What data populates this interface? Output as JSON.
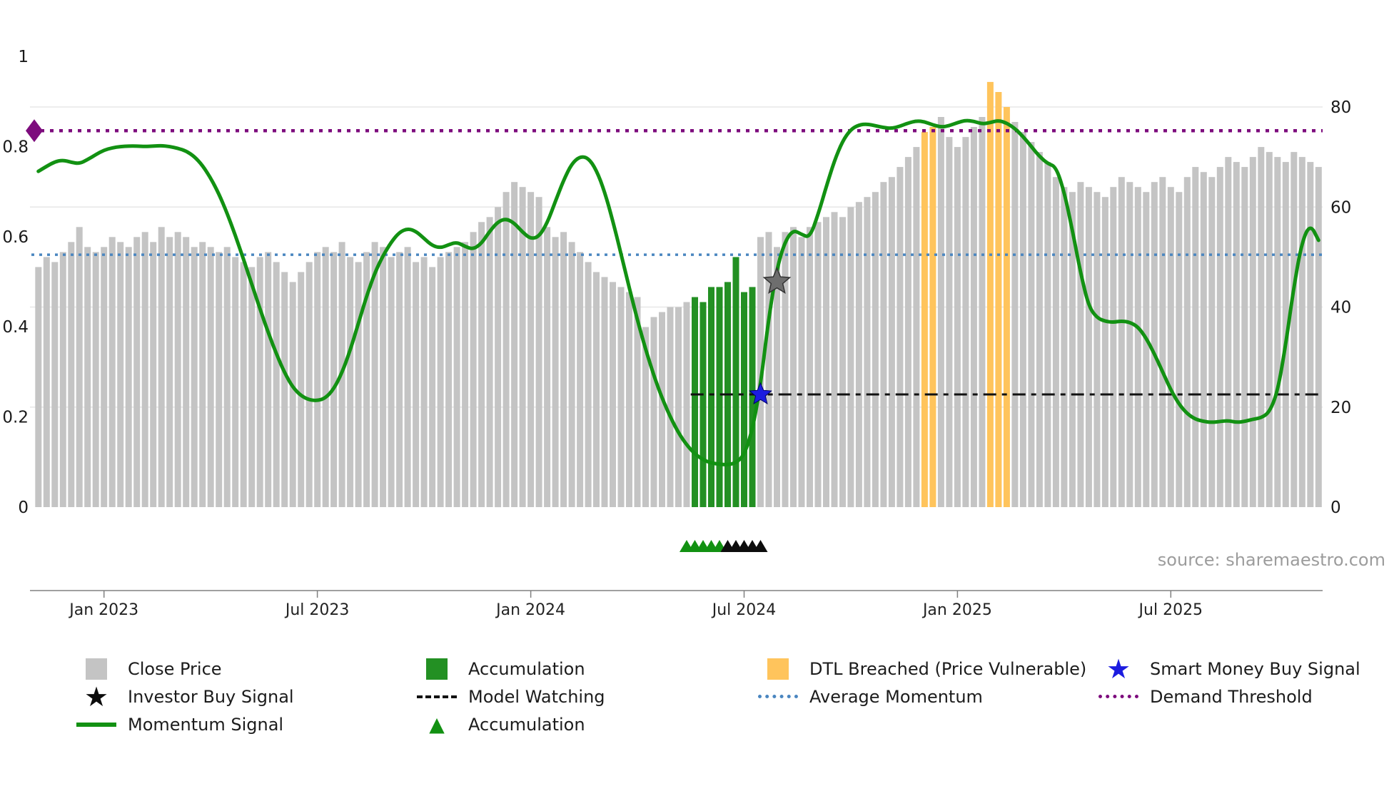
{
  "source_text": "source: sharemaestro.com",
  "icons": {
    "star": "★",
    "triangle": "▲"
  },
  "legend": {
    "close_price": "Close Price",
    "investor_buy_signal": "Investor Buy Signal",
    "momentum_signal": "Momentum Signal",
    "accumulation_bar": "Accumulation",
    "model_watching": "Model Watching",
    "accumulation_marker": "Accumulation",
    "dtl_breached": "DTL Breached (Price Vulnerable)",
    "average_momentum": "Average Momentum",
    "smart_money_buy_signal": "Smart Money Buy Signal",
    "demand_threshold": "Demand Threshold"
  },
  "colors": {
    "bar_normal": "#c4c4c4",
    "bar_accumulation": "#239023",
    "bar_dtl": "#ffc45c",
    "momentum_line": "#129112",
    "average_momentum": "#4a86c0",
    "demand_threshold": "#7d0c7d",
    "model_watching": "#111111",
    "smart_money_star": "#1c1ce0",
    "investor_star_plot": "#6e6e6e",
    "investor_star_legend": "#0d0d0d",
    "marker_green": "#129112",
    "marker_black": "#0d0d0d",
    "grid": "#e7e7e7",
    "axis": "#808080"
  },
  "chart_data": {
    "type": "mixed",
    "description": "Weekly close price bars (right axis) with momentum signal line (left axis 0-1), threshold lines and buy-signal markers",
    "x_unit": "week",
    "x_tick_labels": [
      "Jan 2023",
      "Jul 2023",
      "Jan 2024",
      "Jul 2024",
      "Jan 2025",
      "Jul 2025"
    ],
    "x_tick_indices": [
      8,
      34,
      60,
      86,
      112,
      138
    ],
    "y_left": {
      "ticks": [
        0,
        0.2,
        0.4,
        0.6,
        0.8,
        1
      ],
      "range": [
        0,
        1
      ]
    },
    "y_right": {
      "ticks": [
        0,
        20,
        40,
        60,
        80
      ],
      "range": [
        0,
        90
      ]
    },
    "close_price": {
      "type": "bar",
      "axis": "right",
      "values": [
        48,
        50,
        49,
        51,
        53,
        56,
        52,
        51,
        52,
        54,
        53,
        52,
        54,
        55,
        53,
        56,
        54,
        55,
        54,
        52,
        53,
        52,
        51,
        52,
        50,
        49,
        48,
        50,
        51,
        49,
        47,
        45,
        47,
        49,
        51,
        52,
        51,
        53,
        50,
        49,
        51,
        53,
        52,
        50,
        51,
        52,
        49,
        50,
        48,
        50,
        51,
        52,
        53,
        55,
        57,
        58,
        60,
        63,
        65,
        64,
        63,
        62,
        56,
        54,
        55,
        53,
        51,
        49,
        47,
        46,
        45,
        44,
        43,
        42,
        36,
        38,
        39,
        40,
        40,
        41,
        42,
        41,
        44,
        44,
        45,
        50,
        43,
        44,
        54,
        55,
        52,
        55,
        56,
        54,
        56,
        57,
        58,
        59,
        58,
        60,
        61,
        62,
        63,
        65,
        66,
        68,
        70,
        72,
        75,
        76,
        78,
        74,
        72,
        74,
        76,
        78,
        85,
        83,
        80,
        77,
        75,
        73,
        71,
        69,
        66,
        64,
        63,
        65,
        64,
        63,
        62,
        64,
        66,
        65,
        64,
        63,
        65,
        66,
        64,
        63,
        66,
        68,
        67,
        66,
        68,
        70,
        69,
        68,
        70,
        72,
        71,
        70,
        69,
        71,
        70,
        69,
        68
      ],
      "accumulation_indices": [
        80,
        81,
        82,
        83,
        84,
        85,
        86,
        87
      ],
      "dtl_indices": [
        108,
        109,
        116,
        117,
        118
      ]
    },
    "momentum_signal": {
      "type": "line",
      "axis": "left",
      "values": [
        0.745,
        0.756,
        0.766,
        0.77,
        0.765,
        0.762,
        0.771,
        0.782,
        0.792,
        0.797,
        0.8,
        0.801,
        0.801,
        0.8,
        0.801,
        0.802,
        0.8,
        0.796,
        0.79,
        0.778,
        0.758,
        0.73,
        0.695,
        0.652,
        0.603,
        0.55,
        0.495,
        0.44,
        0.388,
        0.34,
        0.298,
        0.266,
        0.247,
        0.238,
        0.236,
        0.242,
        0.262,
        0.298,
        0.348,
        0.408,
        0.468,
        0.52,
        0.558,
        0.588,
        0.61,
        0.618,
        0.612,
        0.596,
        0.58,
        0.575,
        0.582,
        0.588,
        0.578,
        0.572,
        0.585,
        0.612,
        0.633,
        0.64,
        0.63,
        0.61,
        0.595,
        0.6,
        0.63,
        0.678,
        0.725,
        0.762,
        0.778,
        0.775,
        0.748,
        0.7,
        0.635,
        0.562,
        0.487,
        0.415,
        0.35,
        0.292,
        0.242,
        0.2,
        0.165,
        0.138,
        0.118,
        0.105,
        0.098,
        0.095,
        0.094,
        0.098,
        0.115,
        0.17,
        0.27,
        0.42,
        0.53,
        0.59,
        0.615,
        0.605,
        0.598,
        0.648,
        0.71,
        0.768,
        0.812,
        0.838,
        0.848,
        0.85,
        0.846,
        0.842,
        0.84,
        0.845,
        0.852,
        0.857,
        0.855,
        0.848,
        0.843,
        0.846,
        0.853,
        0.858,
        0.856,
        0.85,
        0.853,
        0.858,
        0.852,
        0.84,
        0.822,
        0.8,
        0.778,
        0.762,
        0.755,
        0.7,
        0.615,
        0.52,
        0.445,
        0.42,
        0.412,
        0.41,
        0.413,
        0.41,
        0.4,
        0.375,
        0.34,
        0.3,
        0.26,
        0.228,
        0.207,
        0.195,
        0.19,
        0.188,
        0.19,
        0.192,
        0.188,
        0.19,
        0.195,
        0.198,
        0.21,
        0.255,
        0.36,
        0.49,
        0.59,
        0.628,
        0.592
      ]
    },
    "reference_lines": {
      "demand_threshold": {
        "value": 0.835,
        "style": "dotted",
        "axis": "left",
        "span": "full"
      },
      "average_momentum": {
        "value": 0.56,
        "style": "dotted",
        "axis": "left",
        "span": "full"
      },
      "model_watching": {
        "value": 0.25,
        "style": "dashdot",
        "axis": "left",
        "start_index": 80
      }
    },
    "markers": {
      "investor_buy_signal": {
        "index": 90,
        "value": 0.5,
        "shape": "star"
      },
      "smart_money_buy_signal": {
        "index": 88,
        "value": 0.25,
        "shape": "star"
      },
      "demand_threshold_diamond": {
        "index": 0,
        "value": 0.835,
        "shape": "diamond"
      },
      "accumulation_triangle_indices": [
        79,
        80,
        81,
        82,
        83
      ],
      "secondary_triangle_indices": [
        84,
        85,
        86,
        87,
        88
      ]
    }
  }
}
